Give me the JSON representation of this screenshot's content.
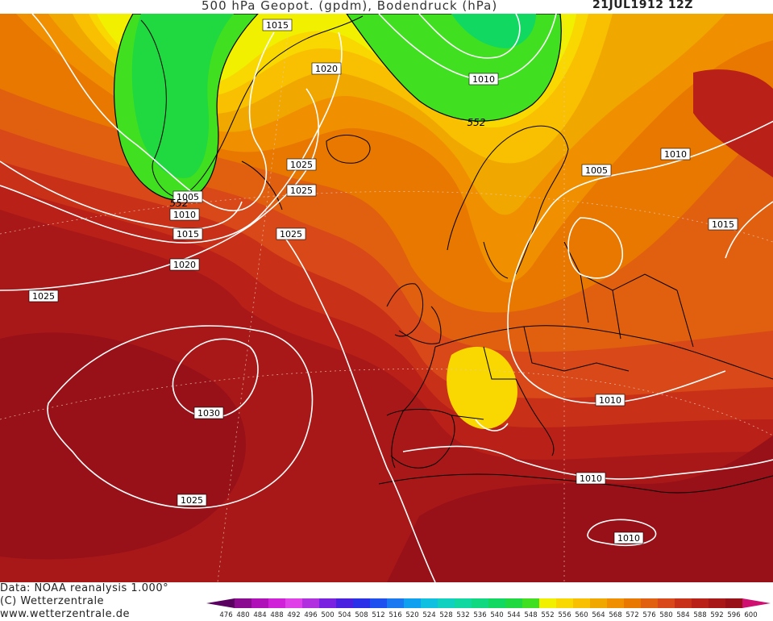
{
  "title": {
    "main": "500 hPa Geopot. (gpdm), Bodendruck (hPa)",
    "date": "21JUL1912 12Z"
  },
  "footer": {
    "line1": "Data: NOAA reanalysis 1.000°",
    "line2": "(C) Wetterzentrale",
    "line3": "www.wetterzentrale.de"
  },
  "legend": {
    "values": [
      "476",
      "480",
      "484",
      "488",
      "492",
      "496",
      "500",
      "504",
      "508",
      "512",
      "516",
      "520",
      "524",
      "528",
      "532",
      "536",
      "540",
      "544",
      "548",
      "552",
      "556",
      "560",
      "564",
      "568",
      "572",
      "576",
      "580",
      "584",
      "588",
      "592",
      "596",
      "600"
    ],
    "colors": [
      "#5a0060",
      "#8a0a90",
      "#b010b8",
      "#d020d8",
      "#e040e8",
      "#b030e0",
      "#7a20e0",
      "#4a20e0",
      "#2a30e8",
      "#1e50f0",
      "#1a78f0",
      "#10a0f0",
      "#10c0e0",
      "#10d0c0",
      "#10d8a0",
      "#10d880",
      "#10d860",
      "#20d840",
      "#40e020",
      "#f0f000",
      "#f8d800",
      "#f8c000",
      "#f0a800",
      "#f09000",
      "#e87800",
      "#e06010",
      "#d84818",
      "#c83018",
      "#b82018",
      "#a81818",
      "#981018",
      "#d01070"
    ]
  },
  "isobar_labels": [
    {
      "text": "1015"
    },
    {
      "text": "1010"
    },
    {
      "text": "1020"
    },
    {
      "text": "1025"
    },
    {
      "text": "1025"
    },
    {
      "text": "1005"
    },
    {
      "text": "1010"
    },
    {
      "text": "1015"
    },
    {
      "text": "1020"
    },
    {
      "text": "1025"
    },
    {
      "text": "1025"
    },
    {
      "text": "1030"
    },
    {
      "text": "1025"
    },
    {
      "text": "1010"
    },
    {
      "text": "1015"
    },
    {
      "text": "1005"
    },
    {
      "text": "1010"
    },
    {
      "text": "1010"
    },
    {
      "text": "1010"
    }
  ],
  "contour_labels": [
    {
      "text": "552"
    },
    {
      "text": "552"
    }
  ]
}
